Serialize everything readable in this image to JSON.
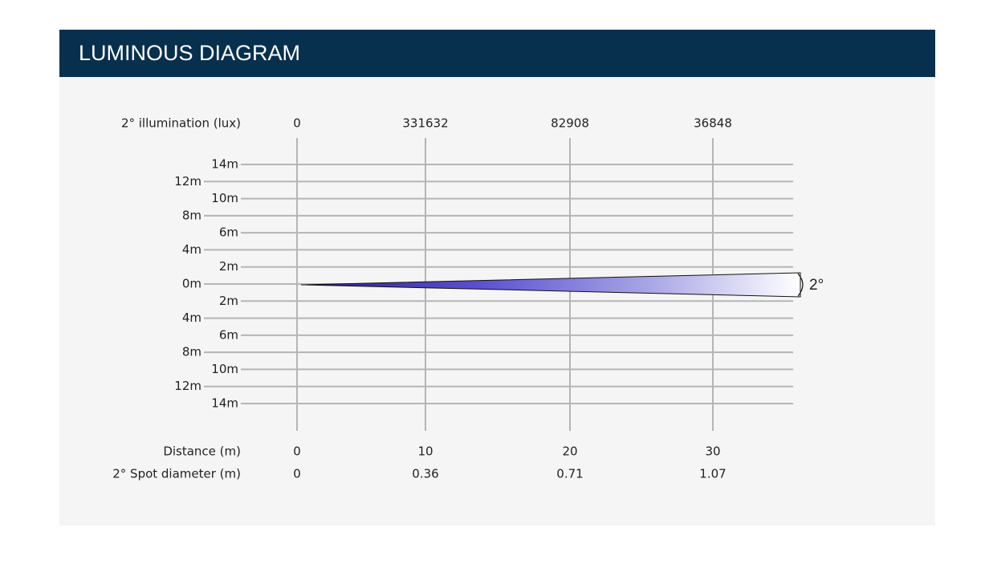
{
  "header": {
    "title": "LUMINOUS DIAGRAM"
  },
  "illumination": {
    "label": "2° illumination (lux)",
    "values": [
      0,
      331632,
      82908,
      36848
    ]
  },
  "height_rows": [
    "14m",
    "12m",
    "10m",
    "8m",
    "6m",
    "4m",
    "2m",
    "0m",
    "2m",
    "4m",
    "6m",
    "8m",
    "10m",
    "12m",
    "14m"
  ],
  "beam": {
    "angle_label": "2°"
  },
  "distance": {
    "label": "Distance (m)",
    "values": [
      0,
      10,
      20,
      30
    ]
  },
  "spot_diameter": {
    "label": "2° Spot diameter (m)",
    "values": [
      0,
      0.36,
      0.71,
      1.07
    ]
  }
}
